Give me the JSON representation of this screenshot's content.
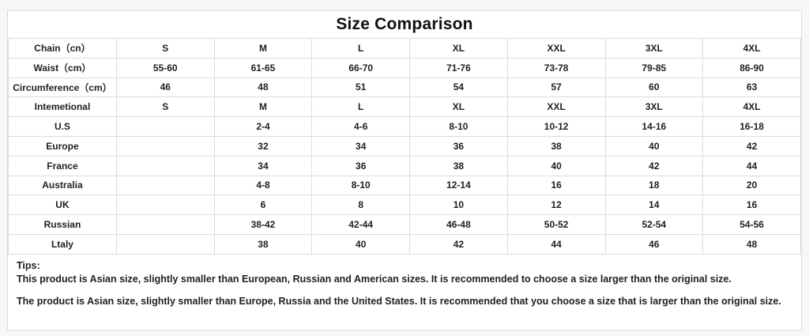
{
  "title": "Size Comparison",
  "table": {
    "rows": [
      {
        "label": "Chain（cn）",
        "values": [
          "S",
          "M",
          "L",
          "XL",
          "XXL",
          "3XL",
          "4XL"
        ]
      },
      {
        "label": "Waist（cm）",
        "values": [
          "55-60",
          "61-65",
          "66-70",
          "71-76",
          "73-78",
          "79-85",
          "86-90"
        ]
      },
      {
        "label": "Circumference（cm）",
        "values": [
          "46",
          "48",
          "51",
          "54",
          "57",
          "60",
          "63"
        ]
      },
      {
        "label": "Intemetional",
        "values": [
          "S",
          "M",
          "L",
          "XL",
          "XXL",
          "3XL",
          "4XL"
        ]
      },
      {
        "label": "U.S",
        "values": [
          "",
          "2-4",
          "4-6",
          "8-10",
          "10-12",
          "14-16",
          "16-18"
        ]
      },
      {
        "label": "Europe",
        "values": [
          "",
          "32",
          "34",
          "36",
          "38",
          "40",
          "42"
        ]
      },
      {
        "label": "France",
        "values": [
          "",
          "34",
          "36",
          "38",
          "40",
          "42",
          "44"
        ]
      },
      {
        "label": "Australia",
        "values": [
          "",
          "4-8",
          "8-10",
          "12-14",
          "16",
          "18",
          "20"
        ]
      },
      {
        "label": "UK",
        "values": [
          "",
          "6",
          "8",
          "10",
          "12",
          "14",
          "16"
        ]
      },
      {
        "label": "Russian",
        "values": [
          "",
          "38-42",
          "42-44",
          "46-48",
          "50-52",
          "52-54",
          "54-56"
        ]
      },
      {
        "label": "Ltaly",
        "values": [
          "",
          "38",
          "40",
          "42",
          "44",
          "46",
          "48"
        ]
      }
    ]
  },
  "tips": {
    "heading": "Tips:",
    "line1": "This product is Asian size, slightly smaller than European, Russian and American sizes. It is recommended to choose a size larger than the original size.",
    "line2": "The product is Asian size, slightly smaller than Europe, Russia and the United States. It is recommended that you choose a size that is larger than the original size."
  },
  "colors": {
    "text": "#1f1f1f",
    "border": "#d9d9d9",
    "sheet_background": "#ffffff",
    "page_background": "#f7f7f7"
  }
}
